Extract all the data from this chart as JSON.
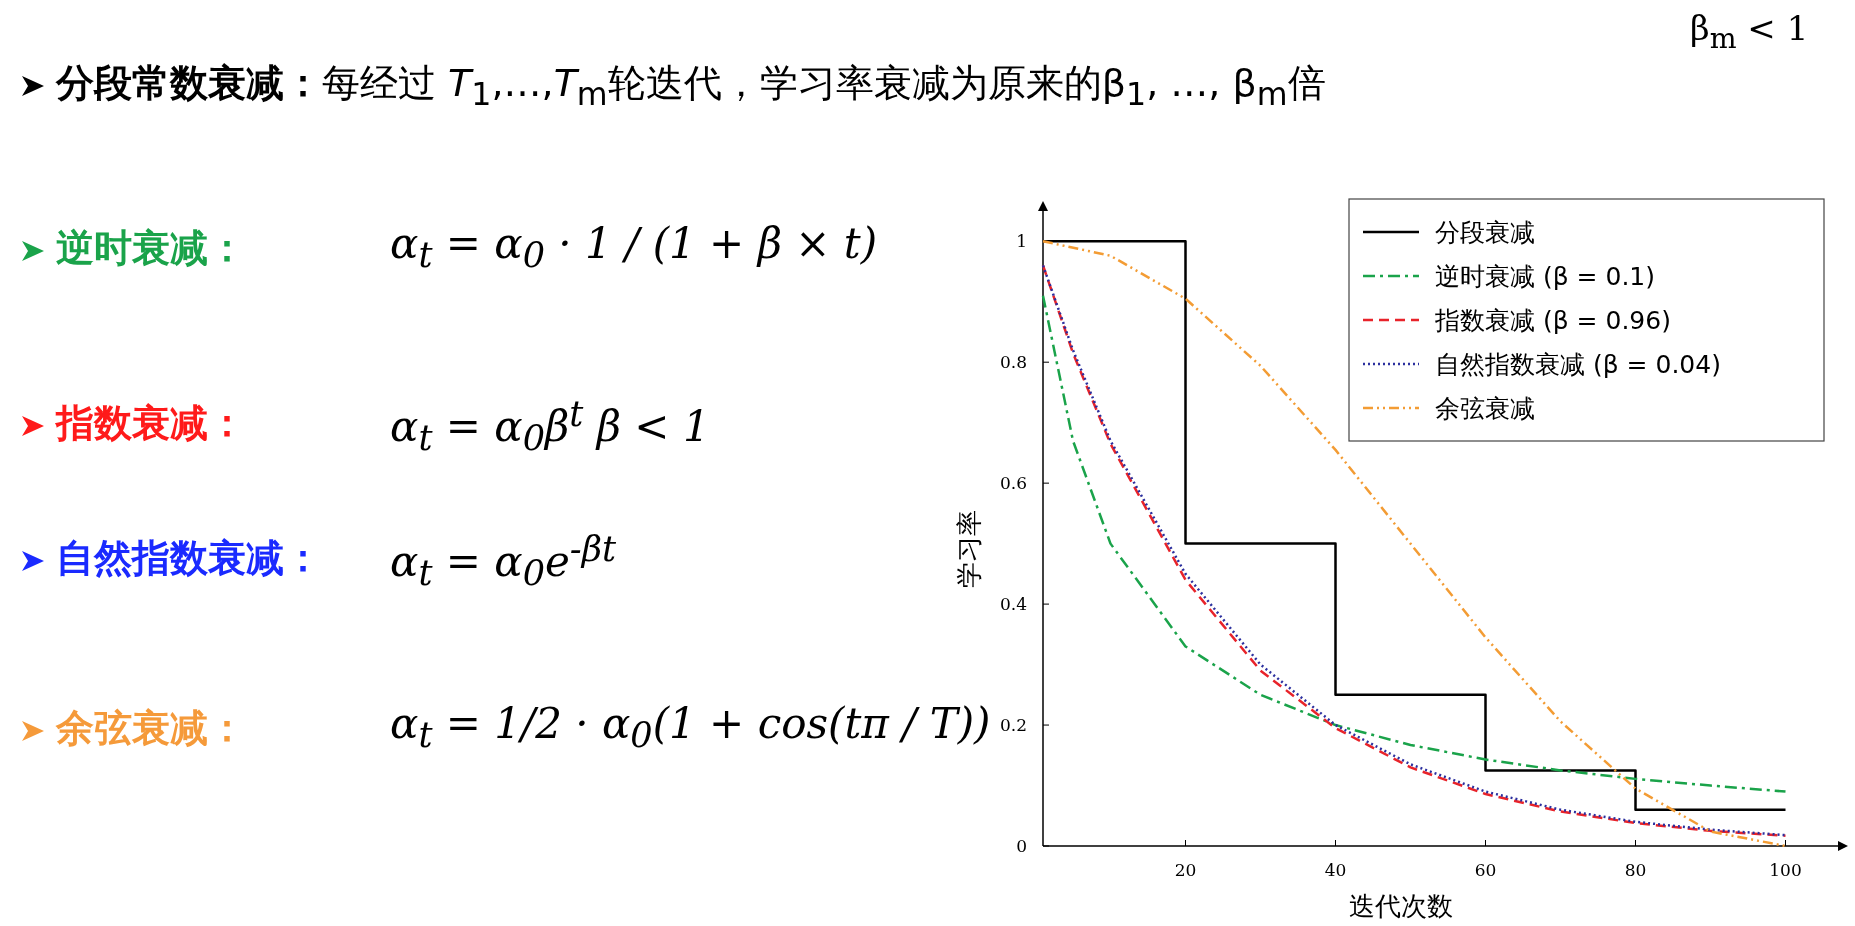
{
  "chart_data": {
    "type": "line",
    "title": "**分段常数衰减：**每经过 *T*$_{1}$,…,*T*$_{m}$轮迭代，学习率衰减为原来的β$_{1}$, …, β$_{m}$倍",
    "subtitle": "β$_{m}$ < 1",
    "xlabel": "迭代次数",
    "ylabel": "学习率",
    "annotations": [
      "逆时衰减：",
      "α$_{t}$ = α$_{0}$ · 1 / (1 + β × t)",
      "指数衰减：",
      "α$_{t}$ = α$_{0}$β$^{t}$   β < 1",
      "自然指数衰减：",
      "α$_{t}$ = α$_{0}$e$^{-βt}$",
      "余弦衰减：",
      "α$_{t}$ = 1/2 · α$_{0}$(1 + cos(tπ / T))"
    ],
    "xlim": [
      1,
      107
    ],
    "ylim": [
      0,
      1.05
    ],
    "xticks": [
      20,
      40,
      60,
      80,
      100
    ],
    "yticks": [
      0,
      0.2,
      0.4,
      0.6,
      0.8,
      1
    ],
    "legend": "top right",
    "grid": false,
    "series": [
      {
        "name": "分段衰减",
        "type": "step",
        "color": "#000000",
        "line_style": "solid",
        "x": [
          1,
          20,
          40,
          60,
          80,
          100
        ],
        "values": [
          1,
          0.5,
          0.25,
          0.125,
          0.06,
          0.06
        ]
      },
      {
        "name": "逆时衰减 (β = 0.1)",
        "type": "line",
        "color": "#1aa34a",
        "line_style": "dashdot",
        "x": [
          1,
          5,
          10,
          20,
          30,
          40,
          50,
          60,
          70,
          80,
          90,
          100
        ],
        "values": [
          0.91,
          0.67,
          0.5,
          0.33,
          0.25,
          0.2,
          0.167,
          0.143,
          0.125,
          0.111,
          0.1,
          0.09
        ]
      },
      {
        "name": "指数衰减 (β = 0.96)",
        "type": "line",
        "color": "#e8232a",
        "line_style": "dashed",
        "x": [
          1,
          5,
          10,
          20,
          30,
          40,
          50,
          60,
          70,
          80,
          90,
          100
        ],
        "values": [
          0.96,
          0.815,
          0.665,
          0.44,
          0.29,
          0.195,
          0.13,
          0.086,
          0.057,
          0.038,
          0.025,
          0.017
        ]
      },
      {
        "name": "自然指数衰减 (β = 0.04)",
        "type": "line",
        "color": "#2b2f9e",
        "line_style": "dotted",
        "x": [
          1,
          5,
          10,
          20,
          30,
          40,
          50,
          60,
          70,
          80,
          90,
          100
        ],
        "values": [
          0.96,
          0.82,
          0.67,
          0.45,
          0.3,
          0.2,
          0.135,
          0.09,
          0.06,
          0.04,
          0.027,
          0.018
        ]
      },
      {
        "name": "余弦衰减",
        "type": "line",
        "color": "#f39c34",
        "line_style": "dashdotdot",
        "x": [
          1,
          10,
          20,
          30,
          40,
          50,
          60,
          70,
          80,
          90,
          100
        ],
        "values": [
          1.0,
          0.976,
          0.905,
          0.794,
          0.655,
          0.5,
          0.345,
          0.206,
          0.095,
          0.024,
          0
        ]
      }
    ]
  }
}
